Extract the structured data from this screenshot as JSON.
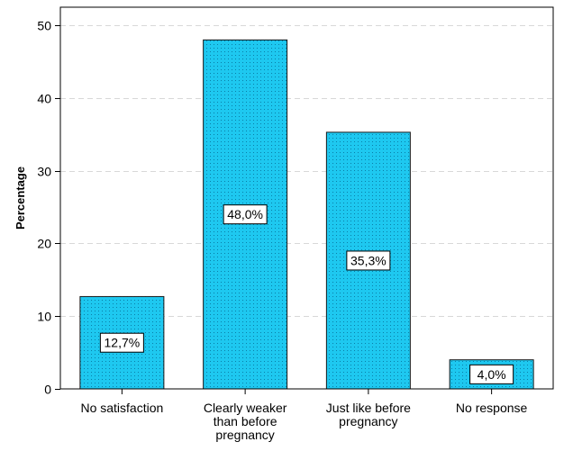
{
  "chart_data": {
    "type": "bar",
    "title": "",
    "xlabel": "",
    "ylabel": "Percentage",
    "categories": [
      [
        "No satisfaction"
      ],
      [
        "Clearly weaker",
        "than before",
        "pregnancy"
      ],
      [
        "Just like before",
        "pregnancy"
      ],
      [
        "No response"
      ]
    ],
    "values": [
      12.7,
      48.0,
      35.3,
      4.0
    ],
    "data_labels": [
      "12,7%",
      "48,0%",
      "35,3%",
      "4,0%"
    ],
    "ylim": [
      0,
      50
    ],
    "yticks": [
      0,
      10,
      20,
      30,
      40,
      50
    ],
    "grid": "horizontal-dashed",
    "bar_color": "#1ec8f0",
    "bar_edge_color": "#1a1a1a",
    "legend": "none"
  }
}
